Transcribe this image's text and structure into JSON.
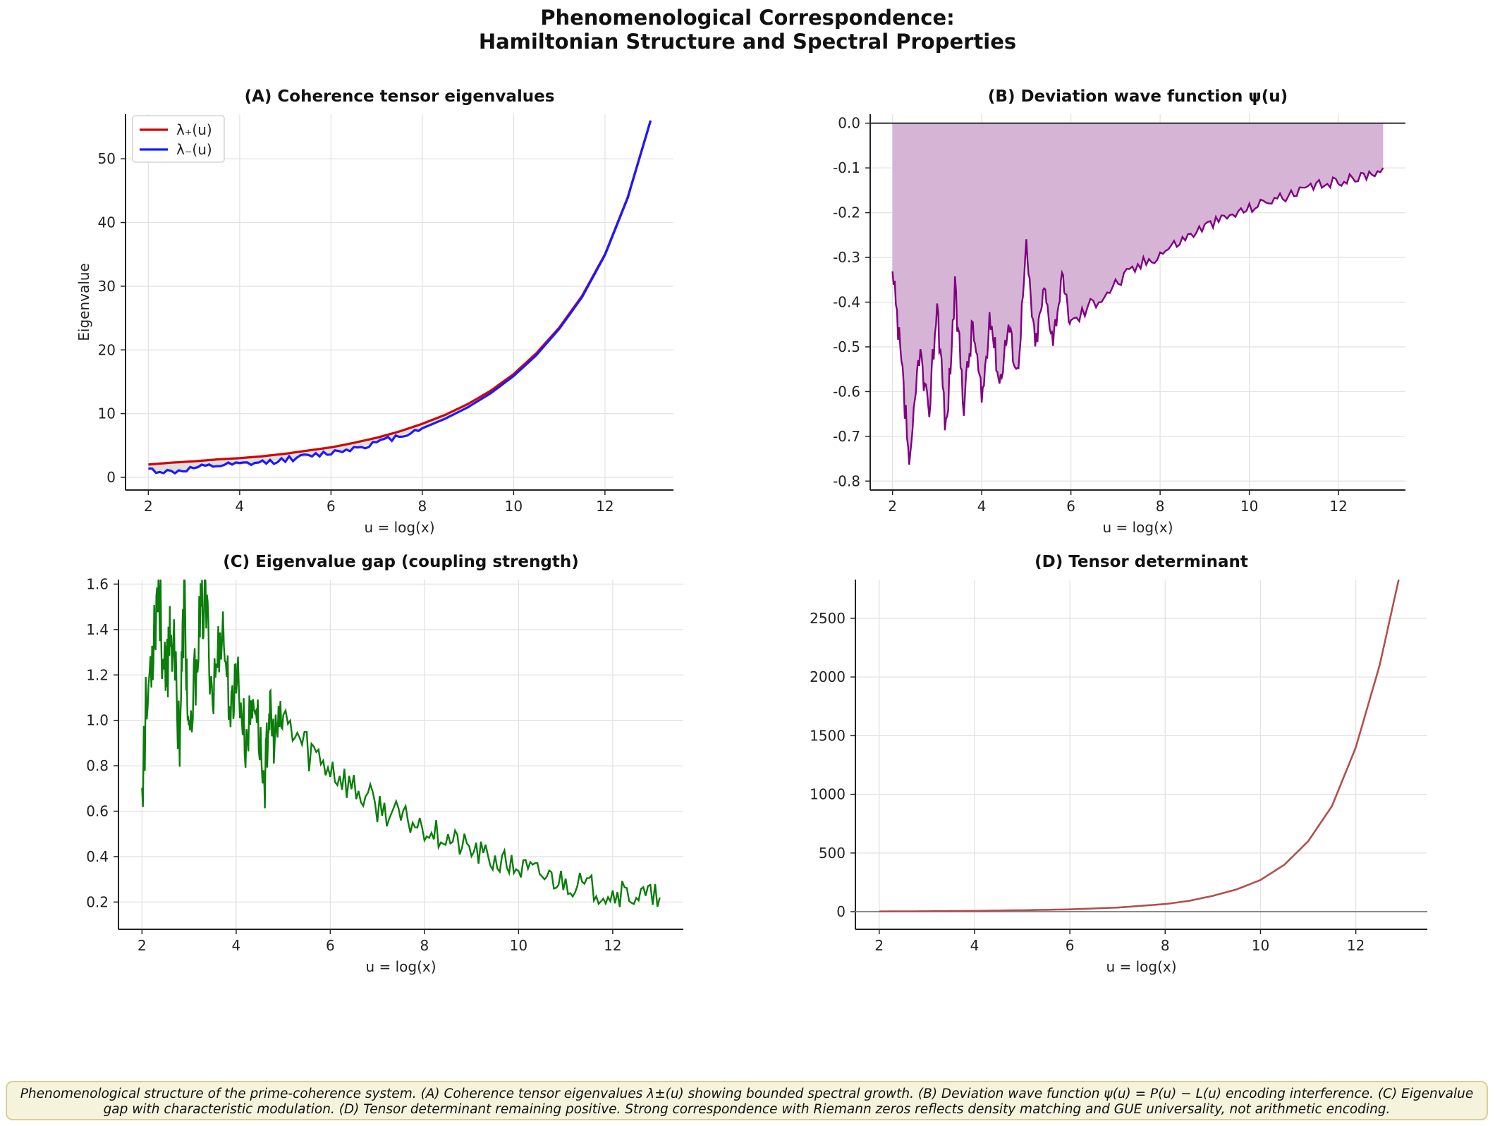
{
  "figure": {
    "title_line1": "Phenomenological Correspondence:",
    "title_line2": "Hamiltonian Structure and Spectral Properties",
    "caption": "Phenomenological structure of the prime-coherence system. (A) Coherence tensor eigenvalues λ±(u) showing bounded spectral growth. (B) Deviation wave function ψ(u) = P(u) − L(u) encoding interference. (C) Eigenvalue gap with characteristic modulation. (D) Tensor determinant remaining positive. Strong correspondence with Riemann zeros reflects density matching and GUE universality, not arithmetic encoding."
  },
  "colors": {
    "lambda_plus": "#d40000",
    "lambda_minus": "#1a1aff",
    "psi_line": "#800080",
    "psi_fill": "#d4b0d4",
    "gap_line": "#0a7d0a",
    "det_line": "#b0504c",
    "grid": "#e3e3e3"
  },
  "chart_data": [
    {
      "id": "A",
      "type": "line",
      "title": "(A) Coherence tensor eigenvalues",
      "xlabel": "u = log(x)",
      "ylabel": "Eigenvalue",
      "xlim": [
        1.5,
        13.5
      ],
      "ylim": [
        -2,
        57
      ],
      "xticks": [
        2,
        4,
        6,
        8,
        10,
        12
      ],
      "yticks": [
        0,
        10,
        20,
        30,
        40,
        50
      ],
      "legend": "top-left",
      "x": [
        2,
        2.5,
        3,
        3.5,
        4,
        4.5,
        5,
        5.5,
        6,
        6.5,
        7,
        7.5,
        8,
        8.5,
        9,
        9.5,
        10,
        10.5,
        11,
        11.5,
        12,
        12.5,
        13
      ],
      "series": [
        {
          "name": "λ₊(u)",
          "values": [
            2.0,
            2.3,
            2.5,
            2.8,
            3.0,
            3.3,
            3.7,
            4.2,
            4.7,
            5.4,
            6.2,
            7.2,
            8.4,
            9.8,
            11.5,
            13.6,
            16.2,
            19.5,
            23.5,
            28.5,
            35.0,
            44.0,
            56.0
          ]
        },
        {
          "name": "λ₋(u)",
          "values": [
            1.2,
            0.8,
            1.4,
            1.8,
            2.0,
            2.3,
            2.8,
            3.3,
            3.9,
            4.6,
            5.4,
            6.5,
            7.7,
            9.2,
            11.0,
            13.2,
            15.9,
            19.2,
            23.3,
            28.3,
            34.9,
            43.9,
            56.0
          ]
        }
      ]
    },
    {
      "id": "B",
      "type": "area",
      "title": "(B) Deviation wave function ψ(u)",
      "xlabel": "u = log(x)",
      "xlim": [
        1.5,
        13.5
      ],
      "ylim": [
        -0.82,
        0.02
      ],
      "xticks": [
        2,
        4,
        6,
        8,
        10,
        12
      ],
      "yticks": [
        0.0,
        -0.1,
        -0.2,
        -0.3,
        -0.4,
        -0.5,
        -0.6,
        -0.7,
        -0.8
      ],
      "ytick_labels": [
        "0.0",
        "-0.1",
        "-0.2",
        "-0.3",
        "-0.4",
        "-0.5",
        "-0.6",
        "-0.7",
        "-0.8"
      ],
      "series": [
        {
          "name": "ψ(u)",
          "x": [
            2,
            2.2,
            2.4,
            2.6,
            2.8,
            3,
            3.2,
            3.4,
            3.6,
            3.8,
            4,
            4.2,
            4.4,
            4.6,
            4.8,
            5,
            5.2,
            5.4,
            5.6,
            5.8,
            6,
            6.5,
            7,
            7.5,
            8,
            8.5,
            9,
            9.5,
            10,
            10.5,
            11,
            11.5,
            12,
            12.5,
            13
          ],
          "values": [
            -0.35,
            -0.55,
            -0.78,
            -0.5,
            -0.66,
            -0.4,
            -0.69,
            -0.38,
            -0.62,
            -0.45,
            -0.62,
            -0.43,
            -0.58,
            -0.45,
            -0.56,
            -0.28,
            -0.5,
            -0.37,
            -0.48,
            -0.35,
            -0.45,
            -0.4,
            -0.36,
            -0.32,
            -0.29,
            -0.26,
            -0.23,
            -0.21,
            -0.19,
            -0.17,
            -0.16,
            -0.14,
            -0.13,
            -0.12,
            -0.1
          ]
        }
      ]
    },
    {
      "id": "C",
      "type": "line",
      "title": "(C) Eigenvalue gap (coupling strength)",
      "xlabel": "u = log(x)",
      "xlim": [
        1.5,
        13.5
      ],
      "ylim": [
        0.08,
        1.62
      ],
      "xticks": [
        2,
        4,
        6,
        8,
        10,
        12
      ],
      "yticks": [
        0.2,
        0.4,
        0.6,
        0.8,
        1.0,
        1.2,
        1.4,
        1.6
      ],
      "ytick_labels": [
        "0.2",
        "0.4",
        "0.6",
        "0.8",
        "1.0",
        "1.2",
        "1.4",
        "1.6"
      ],
      "series": [
        {
          "name": "gap",
          "x": [
            2,
            2.2,
            2.35,
            2.5,
            2.6,
            2.8,
            2.9,
            3.0,
            3.2,
            3.35,
            3.5,
            3.7,
            3.9,
            4.0,
            4.2,
            4.4,
            4.6,
            4.7,
            4.8,
            5.0,
            5.5,
            6.0,
            6.5,
            7.0,
            7.5,
            8.0,
            8.5,
            9.0,
            9.5,
            10.0,
            10.5,
            11.0,
            11.5,
            12.0,
            12.5,
            13.0
          ],
          "values": [
            0.78,
            1.3,
            1.62,
            1.1,
            1.47,
            0.95,
            1.55,
            0.82,
            1.4,
            1.53,
            1.1,
            1.44,
            1.0,
            1.25,
            0.9,
            1.12,
            0.7,
            1.05,
            0.92,
            1.0,
            0.88,
            0.8,
            0.7,
            0.62,
            0.57,
            0.53,
            0.48,
            0.43,
            0.38,
            0.35,
            0.32,
            0.29,
            0.26,
            0.24,
            0.23,
            0.22
          ]
        }
      ]
    },
    {
      "id": "D",
      "type": "line",
      "title": "(D) Tensor determinant",
      "xlabel": "u = log(x)",
      "xlim": [
        1.5,
        13.5
      ],
      "ylim": [
        -150,
        2830
      ],
      "xticks": [
        2,
        4,
        6,
        8,
        10,
        12
      ],
      "yticks": [
        0,
        500,
        1000,
        1500,
        2000,
        2500
      ],
      "series": [
        {
          "name": "det",
          "x": [
            2,
            3,
            4,
            5,
            6,
            7,
            8,
            8.5,
            9,
            9.5,
            10,
            10.5,
            11,
            11.5,
            12,
            12.5,
            12.9
          ],
          "values": [
            2,
            4,
            7,
            12,
            20,
            35,
            65,
            92,
            135,
            190,
            270,
            400,
            600,
            900,
            1400,
            2100,
            2830
          ]
        }
      ]
    }
  ]
}
